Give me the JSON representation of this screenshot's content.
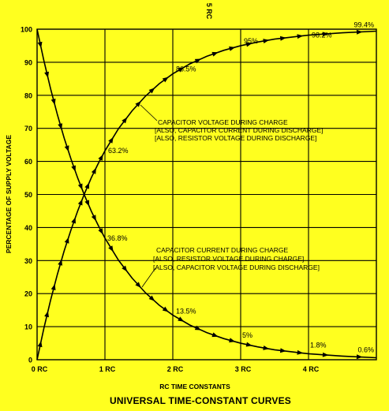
{
  "chart_data": {
    "type": "line",
    "title": "UNIVERSAL TIME-CONSTANT CURVES",
    "top_note": "5 RC",
    "xlabel": "RC TIME CONSTANTS",
    "ylabel": "PERCENTAGE OF SUPPLY VOLTAGE",
    "xlim": [
      0,
      5
    ],
    "ylim": [
      0,
      100
    ],
    "x_ticks": [
      0,
      1,
      2,
      3,
      4
    ],
    "x_tick_labels": [
      "0 RC",
      "1 RC",
      "2 RC",
      "3 RC",
      "4 RC"
    ],
    "y_ticks": [
      0,
      10,
      20,
      30,
      40,
      50,
      60,
      70,
      80,
      90,
      100
    ],
    "y_tick_labels": [
      "0",
      "10",
      "20",
      "30",
      "40",
      "50",
      "60",
      "70",
      "80",
      "90",
      "100"
    ],
    "grid": true,
    "series": [
      {
        "x": [
          0,
          0.1,
          0.2,
          0.3,
          0.4,
          0.5,
          0.6,
          0.7,
          0.8,
          0.9,
          1.0,
          1.2,
          1.4,
          1.6,
          1.8,
          2.0,
          2.25,
          2.5,
          2.75,
          3.0,
          3.25,
          3.5,
          3.75,
          4.0,
          4.5,
          5.0
        ],
        "values": [
          0,
          9.5,
          18.1,
          25.9,
          33.0,
          39.3,
          45.1,
          50.3,
          55.1,
          59.3,
          63.2,
          69.9,
          75.3,
          79.8,
          83.5,
          86.5,
          89.5,
          91.8,
          93.6,
          95.0,
          96.1,
          97.0,
          97.6,
          98.2,
          98.9,
          99.4
        ],
        "labels": [
          {
            "x": 1,
            "y": 63.2,
            "text": "63.2%"
          },
          {
            "x": 2,
            "y": 86.5,
            "text": "86.5%"
          },
          {
            "x": 3,
            "y": 95,
            "text": "95%"
          },
          {
            "x": 4,
            "y": 98.2,
            "text": "98.2%"
          },
          {
            "x": 5,
            "y": 99.4,
            "text": "99.4%"
          }
        ]
      },
      {
        "x": [
          0,
          0.1,
          0.2,
          0.3,
          0.4,
          0.5,
          0.6,
          0.7,
          0.8,
          0.9,
          1.0,
          1.2,
          1.4,
          1.6,
          1.8,
          2.0,
          2.25,
          2.5,
          2.75,
          3.0,
          3.25,
          3.5,
          3.75,
          4.0,
          4.5,
          5.0
        ],
        "values": [
          100,
          90.5,
          81.9,
          74.1,
          67.0,
          60.7,
          54.9,
          49.7,
          44.9,
          40.7,
          36.8,
          30.1,
          24.7,
          20.2,
          16.5,
          13.5,
          10.5,
          8.2,
          6.4,
          5.0,
          3.9,
          3.0,
          2.4,
          1.8,
          1.1,
          0.6
        ],
        "labels": [
          {
            "x": 1,
            "y": 36.8,
            "text": "36.8%"
          },
          {
            "x": 2,
            "y": 13.5,
            "text": "13.5%"
          },
          {
            "x": 3,
            "y": 5,
            "text": "5%"
          },
          {
            "x": 4,
            "y": 1.8,
            "text": "1.8%"
          },
          {
            "x": 5,
            "y": 0.6,
            "text": "0.6%"
          }
        ]
      }
    ],
    "annotations": {
      "rising": [
        "CAPACITOR VOLTAGE DURING CHARGE",
        "[ALSO, CAPACITOR CURRENT DURING DISCHARGE]",
        "[ALSO, RESISTOR VOLTAGE DURING  DISCHARGE]"
      ],
      "falling": [
        "CAPACITOR CURRENT DURING CHARGE",
        "[ALSO, RESISTOR VOLTAGE DURING CHARGE]",
        "[ALSO, CAPACITOR VOLTAGE DURING DISCHARGE]"
      ]
    },
    "colors": {
      "background": "#ffff1f",
      "ink": "#000000"
    }
  }
}
